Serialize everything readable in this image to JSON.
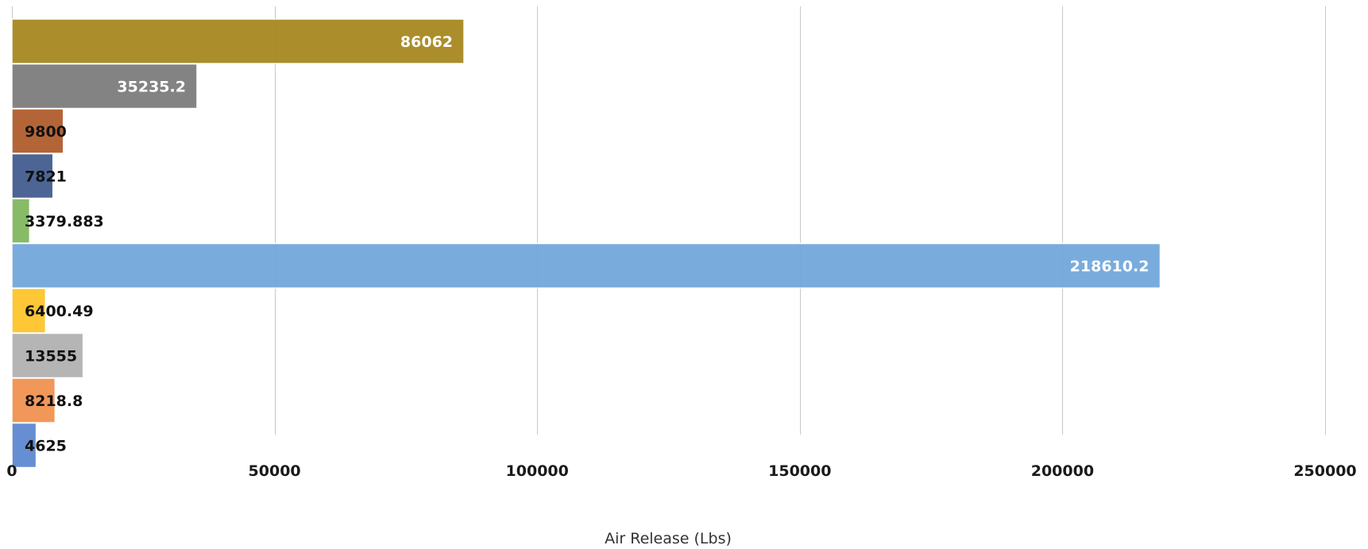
{
  "chart_data": {
    "type": "bar",
    "orientation": "horizontal",
    "title": "",
    "xlabel": "Air Release (Lbs)",
    "ylabel": "",
    "xlim": [
      0,
      250000
    ],
    "x_ticks": [
      "0",
      "50000",
      "100000",
      "150000",
      "200000",
      "250000"
    ],
    "grid": "vertical",
    "legend": "none",
    "bars": [
      {
        "value": 86062,
        "label": "86062",
        "color": "#a5861c",
        "label_color": "#ffffff",
        "label_position": "inside-end"
      },
      {
        "value": 35235.2,
        "label": "35235.2",
        "color": "#7a7a7a",
        "label_color": "#ffffff",
        "label_position": "inside-end"
      },
      {
        "value": 9800,
        "label": "9800",
        "color": "#ae5a2a",
        "label_color": "#111111",
        "label_position": "inside-base"
      },
      {
        "value": 7821,
        "label": "7821",
        "color": "#3f5a8e",
        "label_color": "#111111",
        "label_position": "inside-base"
      },
      {
        "value": 3379.883,
        "label": "3379.883",
        "color": "#7fb65c",
        "label_color": "#111111",
        "label_position": "inside-base"
      },
      {
        "value": 218610.2,
        "label": "218610.2",
        "color": "#6fa6db",
        "label_color": "#ffffff",
        "label_position": "inside-end"
      },
      {
        "value": 6400.49,
        "label": "6400.49",
        "color": "#fdc327",
        "label_color": "#111111",
        "label_position": "inside-base"
      },
      {
        "value": 13555,
        "label": "13555",
        "color": "#b0b0b0",
        "label_color": "#111111",
        "label_position": "inside-base"
      },
      {
        "value": 8218.8,
        "label": "8218.8",
        "color": "#f0904e",
        "label_color": "#111111",
        "label_position": "inside-base"
      },
      {
        "value": 4625,
        "label": "4625",
        "color": "#5b86cf",
        "label_color": "#111111",
        "label_position": "inside-base"
      }
    ]
  }
}
